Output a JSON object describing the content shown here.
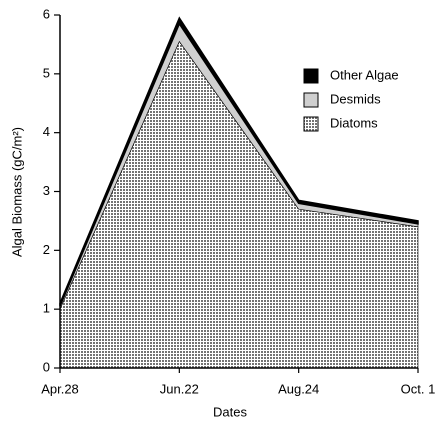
{
  "chart_data": {
    "type": "stacked_area",
    "x_label": "Dates",
    "y_label": "Algal Biomass (gC/m²)",
    "categories": [
      "Apr.28",
      "Jun.22",
      "Aug.24",
      "Oct. 1"
    ],
    "series": [
      {
        "name": "Diatoms",
        "color": "#9a9a9a",
        "values": [
          1.0,
          5.55,
          2.7,
          2.4
        ]
      },
      {
        "name": "Desmids",
        "color": "#cfcfcf",
        "values": [
          0.05,
          0.3,
          0.1,
          0.05
        ]
      },
      {
        "name": "Other Algae",
        "color": "#000000",
        "values": [
          0.05,
          0.1,
          0.05,
          0.05
        ]
      }
    ],
    "ylim": [
      0,
      6
    ],
    "yticks": [
      0,
      1,
      2,
      3,
      4,
      5,
      6
    ]
  }
}
